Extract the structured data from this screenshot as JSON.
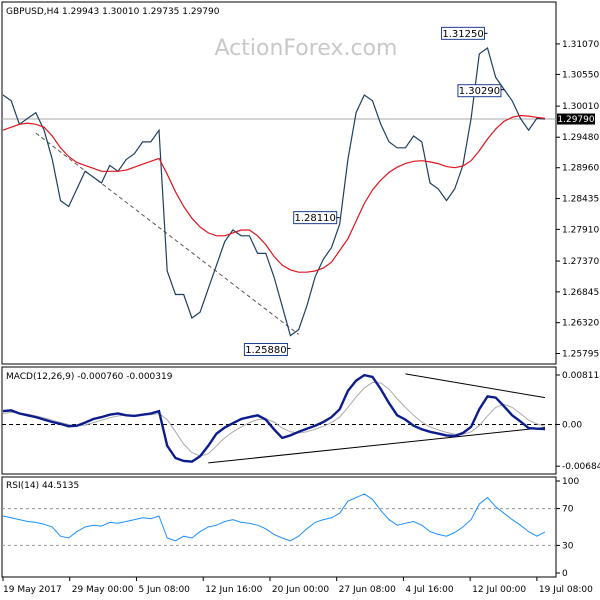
{
  "chart_data": {
    "type": "line",
    "watermark": "ActionForex.com",
    "x_labels": [
      "19 May 2017",
      "29 May 00:00",
      "5 Jun 08:00",
      "12 Jun 16:00",
      "20 Jun 00:00",
      "27 Jun 08:00",
      "4 Jul 16:00",
      "12 Jul 00:00",
      "19 Jul 08:00"
    ],
    "price_panel": {
      "title": "GBPUSD,H4  1.29943 1.30010 1.29735 1.29790",
      "yticks": [
        "1.31070",
        "1.30550",
        "1.30010",
        "1.29480",
        "1.28960",
        "1.28435",
        "1.27910",
        "1.27370",
        "1.26845",
        "1.26320",
        "1.25795"
      ],
      "ylim": [
        1.2565,
        1.3175
      ],
      "current_price": "1.29790",
      "current_value": 1.2979,
      "annotations": [
        {
          "text": "1.31250",
          "value": 1.3125
        },
        {
          "text": "1.30290",
          "value": 1.3029
        },
        {
          "text": "1.28110",
          "value": 1.2811
        },
        {
          "text": "1.25880",
          "value": 1.2588
        }
      ],
      "close_series": [
        1.302,
        1.301,
        1.297,
        1.298,
        1.299,
        1.296,
        1.291,
        1.284,
        1.283,
        1.286,
        1.289,
        1.288,
        1.287,
        1.29,
        1.289,
        1.291,
        1.292,
        1.294,
        1.294,
        1.296,
        1.272,
        1.268,
        1.268,
        1.264,
        1.265,
        1.269,
        1.273,
        1.277,
        1.279,
        1.278,
        1.278,
        1.275,
        1.275,
        1.271,
        1.266,
        1.261,
        1.262,
        1.266,
        1.271,
        1.274,
        1.276,
        1.28,
        1.291,
        1.299,
        1.302,
        1.301,
        1.297,
        1.294,
        1.293,
        1.293,
        1.295,
        1.294,
        1.287,
        1.286,
        1.284,
        1.286,
        1.29,
        1.298,
        1.309,
        1.31,
        1.305,
        1.303,
        1.301,
        1.298,
        1.296,
        1.298,
        1.2979
      ],
      "ma_series": [
        1.296,
        1.2965,
        1.297,
        1.2972,
        1.297,
        1.2965,
        1.295,
        1.293,
        1.2915,
        1.2905,
        1.29,
        1.2895,
        1.289,
        1.289,
        1.289,
        1.2892,
        1.2897,
        1.2902,
        1.2907,
        1.2912,
        1.2885,
        1.2855,
        1.283,
        1.281,
        1.2795,
        1.2785,
        1.278,
        1.278,
        1.2785,
        1.279,
        1.279,
        1.278,
        1.2765,
        1.2745,
        1.273,
        1.2722,
        1.2718,
        1.2718,
        1.272,
        1.2725,
        1.2735,
        1.2755,
        1.2775,
        1.2805,
        1.2835,
        1.2858,
        1.2875,
        1.2888,
        1.2897,
        1.2903,
        1.2907,
        1.2908,
        1.2906,
        1.2903,
        1.2898,
        1.2896,
        1.2899,
        1.2908,
        1.2925,
        1.2945,
        1.2962,
        1.2975,
        1.2982,
        1.2985,
        1.2984,
        1.2982,
        1.298
      ],
      "trendlines": [
        {
          "from": {
            "index": 4,
            "value": 1.2955
          },
          "to": {
            "index": 36,
            "value": 1.2612
          }
        }
      ]
    },
    "macd_panel": {
      "title": "MACD(12,26,9) -0.000760 -0.000319",
      "yticks": [
        "0.008118",
        "0.00",
        "-0.006844"
      ],
      "ylim": [
        -0.0078,
        0.0091
      ],
      "macd_series": [
        0.0022,
        0.0023,
        0.0018,
        0.0015,
        0.0012,
        0.0008,
        0.0004,
        0.0001,
        -0.0003,
        -0.0002,
        0.0003,
        0.0009,
        0.0012,
        0.0016,
        0.0018,
        0.0015,
        0.0014,
        0.0016,
        0.0018,
        0.0022,
        -0.0035,
        -0.0055,
        -0.006,
        -0.0061,
        -0.0052,
        -0.0035,
        -0.0015,
        -0.0005,
        0.0002,
        0.0009,
        0.0012,
        0.0015,
        0.0008,
        -0.0008,
        -0.0022,
        -0.0018,
        -0.0012,
        -0.0007,
        -0.0002,
        0.0004,
        0.0012,
        0.0025,
        0.0055,
        0.0072,
        0.0081,
        0.0078,
        0.0058,
        0.0035,
        0.0015,
        0.0008,
        -0.0002,
        -0.0008,
        -0.0012,
        -0.0015,
        -0.0018,
        -0.0019,
        -0.0014,
        -0.0004,
        0.0025,
        0.0046,
        0.0044,
        0.003,
        0.0015,
        0.0005,
        -0.0006,
        -0.0007,
        -0.00076
      ],
      "signal_series": [
        0.0018,
        0.002,
        0.0019,
        0.0017,
        0.0014,
        0.0011,
        0.0007,
        0.0003,
        0.0,
        -0.0002,
        -0.0001,
        0.0003,
        0.0007,
        0.0011,
        0.0014,
        0.0015,
        0.0015,
        0.0015,
        0.0016,
        0.0018,
        0.0008,
        -0.0012,
        -0.0032,
        -0.0046,
        -0.0052,
        -0.0048,
        -0.0035,
        -0.0022,
        -0.0012,
        -0.0004,
        0.0003,
        0.0008,
        0.0009,
        0.0004,
        -0.0006,
        -0.0012,
        -0.0014,
        -0.0012,
        -0.0008,
        -0.0003,
        0.0003,
        0.0012,
        0.0028,
        0.0045,
        0.006,
        0.0069,
        0.0068,
        0.0058,
        0.0042,
        0.0028,
        0.0015,
        0.0004,
        -0.0004,
        -0.0009,
        -0.0013,
        -0.0016,
        -0.0016,
        -0.0012,
        -0.0002,
        0.0014,
        0.0028,
        0.0033,
        0.0028,
        0.0018,
        0.0007,
        0.0001,
        -0.000319
      ],
      "trendlines": [
        {
          "from": {
            "index": 25,
            "value": -0.0063
          },
          "to": {
            "index": 66,
            "value": -0.0005
          }
        },
        {
          "from": {
            "index": 49,
            "value": 0.0083
          },
          "to": {
            "index": 66,
            "value": 0.0044
          }
        }
      ]
    },
    "rsi_panel": {
      "title": "RSI(14) 44.5135",
      "yticks": [
        "100",
        "70",
        "30",
        "0"
      ],
      "ylim": [
        0,
        100
      ],
      "levels": [
        70,
        30
      ],
      "rsi_series": [
        62,
        60,
        58,
        56,
        55,
        53,
        50,
        40,
        38,
        45,
        50,
        52,
        51,
        55,
        54,
        56,
        58,
        60,
        59,
        62,
        38,
        35,
        40,
        38,
        45,
        50,
        52,
        56,
        58,
        55,
        54,
        52,
        48,
        42,
        38,
        35,
        40,
        48,
        55,
        58,
        60,
        65,
        78,
        82,
        86,
        80,
        68,
        58,
        52,
        54,
        56,
        52,
        45,
        42,
        40,
        44,
        50,
        58,
        75,
        82,
        72,
        65,
        58,
        52,
        45,
        40,
        44.5
      ]
    }
  }
}
